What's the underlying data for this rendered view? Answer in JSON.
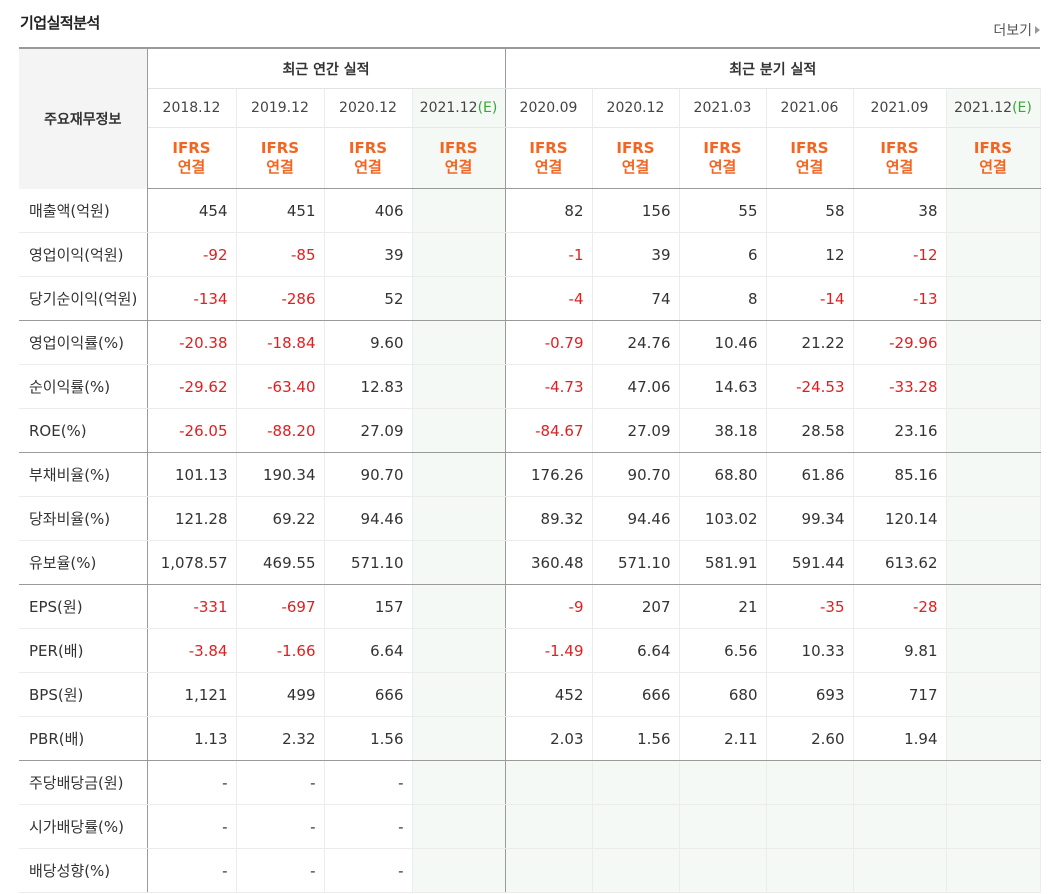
{
  "header": {
    "title": "기업실적분석",
    "more_label": "더보기"
  },
  "table": {
    "row_header_label": "주요재무정보",
    "group_annual": "최근 연간 실적",
    "group_quarter": "최근 분기 실적",
    "annual_periods": [
      "2018.12",
      "2019.12",
      "2020.12",
      "2021.12"
    ],
    "quarter_periods": [
      "2020.09",
      "2020.12",
      "2021.03",
      "2021.06",
      "2021.09",
      "2021.12"
    ],
    "estimate_suffix": "(E)",
    "ifrs_line1": "IFRS",
    "ifrs_line2": "연결",
    "rows": [
      {
        "label": "매출액(억원)",
        "annual": [
          "454",
          "451",
          "406",
          ""
        ],
        "quarter": [
          "82",
          "156",
          "55",
          "58",
          "38",
          ""
        ]
      },
      {
        "label": "영업이익(억원)",
        "annual": [
          "-92",
          "-85",
          "39",
          ""
        ],
        "quarter": [
          "-1",
          "39",
          "6",
          "12",
          "-12",
          ""
        ]
      },
      {
        "label": "당기순이익(억원)",
        "annual": [
          "-134",
          "-286",
          "52",
          ""
        ],
        "quarter": [
          "-4",
          "74",
          "8",
          "-14",
          "-13",
          ""
        ]
      },
      {
        "label": "영업이익률(%)",
        "annual": [
          "-20.38",
          "-18.84",
          "9.60",
          ""
        ],
        "quarter": [
          "-0.79",
          "24.76",
          "10.46",
          "21.22",
          "-29.96",
          ""
        ]
      },
      {
        "label": "순이익률(%)",
        "annual": [
          "-29.62",
          "-63.40",
          "12.83",
          ""
        ],
        "quarter": [
          "-4.73",
          "47.06",
          "14.63",
          "-24.53",
          "-33.28",
          ""
        ]
      },
      {
        "label": "ROE(%)",
        "annual": [
          "-26.05",
          "-88.20",
          "27.09",
          ""
        ],
        "quarter": [
          "-84.67",
          "27.09",
          "38.18",
          "28.58",
          "23.16",
          ""
        ]
      },
      {
        "label": "부채비율(%)",
        "annual": [
          "101.13",
          "190.34",
          "90.70",
          ""
        ],
        "quarter": [
          "176.26",
          "90.70",
          "68.80",
          "61.86",
          "85.16",
          ""
        ]
      },
      {
        "label": "당좌비율(%)",
        "annual": [
          "121.28",
          "69.22",
          "94.46",
          ""
        ],
        "quarter": [
          "89.32",
          "94.46",
          "103.02",
          "99.34",
          "120.14",
          ""
        ]
      },
      {
        "label": "유보율(%)",
        "annual": [
          "1,078.57",
          "469.55",
          "571.10",
          ""
        ],
        "quarter": [
          "360.48",
          "571.10",
          "581.91",
          "591.44",
          "613.62",
          ""
        ]
      },
      {
        "label": "EPS(원)",
        "annual": [
          "-331",
          "-697",
          "157",
          ""
        ],
        "quarter": [
          "-9",
          "207",
          "21",
          "-35",
          "-28",
          ""
        ]
      },
      {
        "label": "PER(배)",
        "annual": [
          "-3.84",
          "-1.66",
          "6.64",
          ""
        ],
        "quarter": [
          "-1.49",
          "6.64",
          "6.56",
          "10.33",
          "9.81",
          ""
        ]
      },
      {
        "label": "BPS(원)",
        "annual": [
          "1,121",
          "499",
          "666",
          ""
        ],
        "quarter": [
          "452",
          "666",
          "680",
          "693",
          "717",
          ""
        ]
      },
      {
        "label": "PBR(배)",
        "annual": [
          "1.13",
          "2.32",
          "1.56",
          ""
        ],
        "quarter": [
          "2.03",
          "1.56",
          "2.11",
          "2.60",
          "1.94",
          ""
        ]
      },
      {
        "label": "주당배당금(원)",
        "annual": [
          "-",
          "-",
          "-",
          ""
        ],
        "quarter": [
          "",
          "",
          "",
          "",
          "",
          ""
        ]
      },
      {
        "label": "시가배당률(%)",
        "annual": [
          "-",
          "-",
          "-",
          ""
        ],
        "quarter": [
          "",
          "",
          "",
          "",
          "",
          ""
        ]
      },
      {
        "label": "배당성향(%)",
        "annual": [
          "-",
          "-",
          "-",
          ""
        ],
        "quarter": [
          "",
          "",
          "",
          "",
          "",
          ""
        ]
      }
    ]
  },
  "colors": {
    "negative": "#e31e1e",
    "ifrs": "#f26522",
    "estimate": "#3aa63a",
    "estimate_bg": "#f5f9f5"
  }
}
